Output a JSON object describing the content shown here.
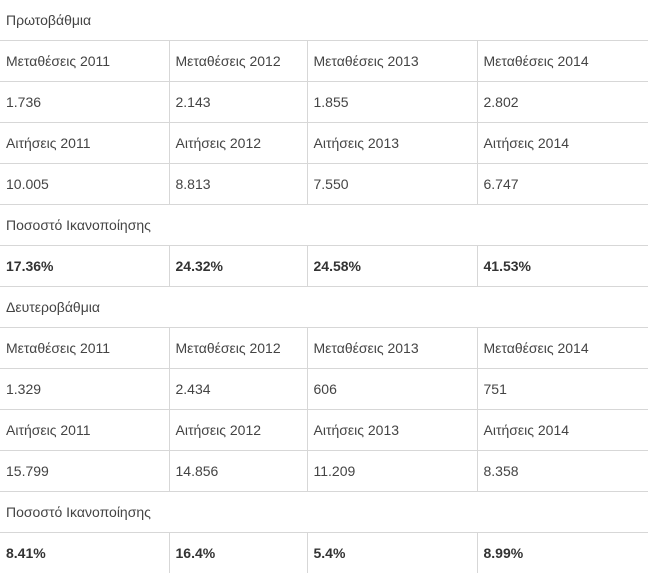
{
  "sections": [
    {
      "title": "Πρωτοβάθμια",
      "transfer_headers": [
        "Μεταθέσεις 2011",
        "Μεταθέσεις 2012",
        "Μεταθέσεις 2013",
        "Μεταθέσεις 2014"
      ],
      "transfers": [
        "1.736",
        "2.143",
        "1.855",
        "2.802"
      ],
      "application_headers": [
        "Αιτήσεις 2011",
        "Αιτήσεις 2012",
        "Αιτήσεις 2013",
        "Αιτήσεις 2014"
      ],
      "applications": [
        "10.005",
        "8.813",
        "7.550",
        "6.747"
      ],
      "satisfaction_label": "Ποσοστό Ικανοποίησης",
      "satisfaction": [
        "17.36%",
        "24.32%",
        "24.58%",
        "41.53%"
      ]
    },
    {
      "title": "Δευτεροβάθμια",
      "transfer_headers": [
        "Μεταθέσεις 2011",
        "Μεταθέσεις 2012",
        "Μεταθέσεις 2013",
        "Μεταθέσεις 2014"
      ],
      "transfers": [
        "1.329",
        "2.434",
        "606",
        "751"
      ],
      "application_headers": [
        "Αιτήσεις 2011",
        "Αιτήσεις 2012",
        "Αιτήσεις 2013",
        "Αιτήσεις 2014"
      ],
      "applications": [
        "15.799",
        "14.856",
        "11.209",
        "8.358"
      ],
      "satisfaction_label": "Ποσοστό Ικανοποίησης",
      "satisfaction": [
        "8.41%",
        "16.4%",
        "5.4%",
        "8.99%"
      ]
    }
  ]
}
